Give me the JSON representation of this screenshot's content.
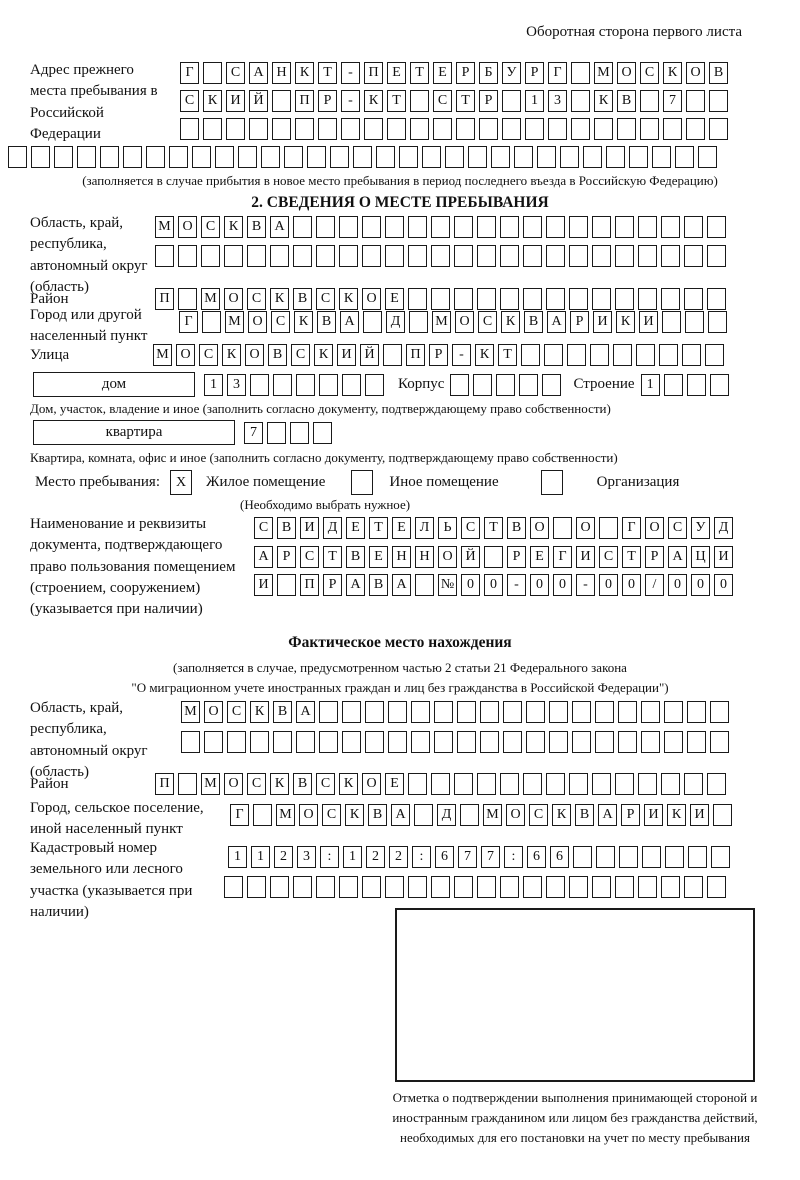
{
  "header": {
    "back_note": "Оборотная сторона первого листа"
  },
  "prev_address": {
    "label": "Адрес прежнего места пребывания в Российской Федерации",
    "line1": "Г САНКТ-ПЕТЕРБУРГ МОСКОВ",
    "line2": "СКИЙ ПР-КТ СТР 13 КВ 7",
    "line3": "",
    "line4": "",
    "note": "(заполняется в случае прибытия в новое место пребывания в период последнего въезда в Российскую Федерацию)"
  },
  "section2": {
    "title": "2. СВЕДЕНИЯ О МЕСТЕ ПРЕБЫВАНИЯ",
    "region_label": "Область, край, республика, автономный округ (область)",
    "region_line1": "МОСКВА",
    "region_line2": "",
    "district_label": "Район",
    "district": "П МОСКВСКОЕ",
    "city_label": "Город или другой населенный пункт",
    "city": "Г МОСКВА Д МОСКВАРИКИ",
    "street_label": "Улица",
    "street": "МОСКОВСКИЙ ПР-КТ",
    "house_label": "дом",
    "house": "13",
    "korpus_label": "Корпус",
    "korpus": "",
    "stroenie_label": "Строение",
    "stroenie": "1",
    "house_note": "Дом, участок, владение и иное (заполнить согласно документу, подтверждающему право собственности)",
    "apartment_label": "квартира",
    "apartment": "7",
    "apartment_note": "Квартира, комната, офис и иное (заполнить согласно документу, подтверждающему право собственности)",
    "stay_label": "Место пребывания:",
    "stay_opt1": "Жилое помещение",
    "stay_opt1_mark": "X",
    "stay_opt2": "Иное помещение",
    "stay_opt2_mark": "",
    "stay_opt3": "Организация",
    "stay_opt3_mark": "",
    "stay_note": "(Необходимо выбрать нужное)",
    "doc_label": "Наименование и реквизиты документа, подтверждающего право пользования помещением (строением, сооружением) (указывается при наличии)",
    "doc_line1": "СВИДЕТЕЛЬСТВО О ГОСУД",
    "doc_line2": "АРСТВЕННОЙ РЕГИСТРАЦИ",
    "doc_line3": "И ПРАВА №00-00-00/000"
  },
  "fact": {
    "title": "Фактическое место нахождения",
    "note1": "(заполняется в случае, предусмотренном частью 2 статьи 21 Федерального закона",
    "note2": "\"О миграционном учете иностранных граждан и лиц без гражданства в Российской Федерации\")",
    "region_label": "Область, край, республика, автономный округ (область)",
    "region_line1": "МОСКВА",
    "region_line2": "",
    "district_label": "Район",
    "district": "П МОСКВСКОЕ",
    "city_label": "Город, сельское поселение, иной населенный пункт",
    "city": "Г МОСКВА Д МОСКВАРИКИ",
    "cadastre_label": "Кадастровый номер земельного или лесного участка (указывается при наличии)",
    "cadastre_line1": "1123:122:677:66",
    "cadastre_line2": ""
  },
  "stamp": {
    "caption": "Отметка о подтверждении выполнения принимающей стороной и иностранным гражданином или лицом без гражданства действий, необходимых для его постановки на учет по месту пребывания"
  }
}
